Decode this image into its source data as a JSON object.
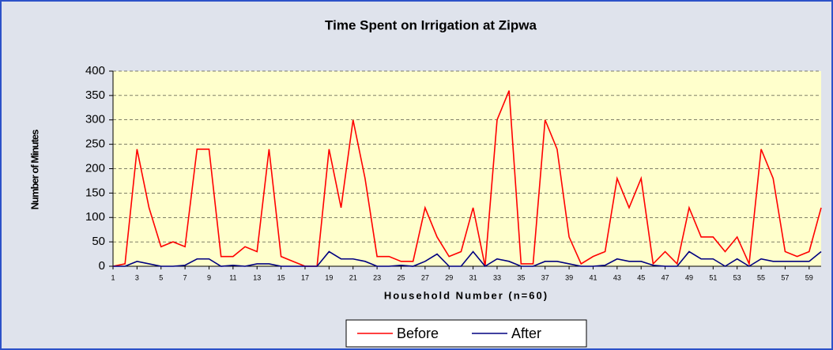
{
  "chart_data": {
    "type": "line",
    "title": "Time Spent on Irrigation at Zipwa",
    "x_label": "Household Number (n=60)",
    "y_label": "Number of Minutes",
    "x": [
      1,
      2,
      3,
      4,
      5,
      6,
      7,
      8,
      9,
      10,
      11,
      12,
      13,
      14,
      15,
      16,
      17,
      18,
      19,
      20,
      21,
      22,
      23,
      24,
      25,
      26,
      27,
      28,
      29,
      30,
      31,
      32,
      33,
      34,
      35,
      36,
      37,
      38,
      39,
      40,
      41,
      42,
      43,
      44,
      45,
      46,
      47,
      48,
      49,
      50,
      51,
      52,
      53,
      54,
      55,
      56,
      57,
      58,
      59,
      60
    ],
    "xlim": [
      1,
      60
    ],
    "xticks": [
      1,
      3,
      5,
      7,
      9,
      11,
      13,
      15,
      17,
      19,
      21,
      23,
      25,
      27,
      29,
      31,
      33,
      35,
      37,
      39,
      41,
      43,
      45,
      47,
      49,
      51,
      53,
      55,
      57,
      59
    ],
    "ylim": [
      0,
      400
    ],
    "yticks": [
      0,
      50,
      100,
      150,
      200,
      250,
      300,
      350,
      400
    ],
    "grid": true,
    "legend": "bottom",
    "series": [
      {
        "name": "Before",
        "color": "#ff0000",
        "values": [
          0,
          5,
          240,
          120,
          40,
          50,
          40,
          240,
          240,
          20,
          20,
          40,
          30,
          240,
          20,
          10,
          0,
          0,
          240,
          120,
          300,
          180,
          20,
          20,
          10,
          10,
          120,
          60,
          20,
          30,
          120,
          0,
          300,
          360,
          5,
          5,
          300,
          240,
          60,
          5,
          20,
          30,
          180,
          120,
          180,
          5,
          30,
          5,
          120,
          60,
          60,
          30,
          60,
          5,
          240,
          180,
          30,
          20,
          30,
          120
        ]
      },
      {
        "name": "After",
        "color": "#000080",
        "values": [
          0,
          0,
          10,
          5,
          0,
          0,
          2,
          15,
          15,
          0,
          2,
          0,
          5,
          5,
          0,
          0,
          0,
          0,
          30,
          15,
          15,
          10,
          0,
          0,
          2,
          0,
          10,
          25,
          0,
          0,
          30,
          0,
          15,
          10,
          0,
          0,
          10,
          10,
          5,
          0,
          0,
          2,
          15,
          10,
          10,
          2,
          0,
          0,
          30,
          15,
          15,
          0,
          15,
          0,
          15,
          10,
          10,
          10,
          10,
          30
        ]
      }
    ]
  }
}
